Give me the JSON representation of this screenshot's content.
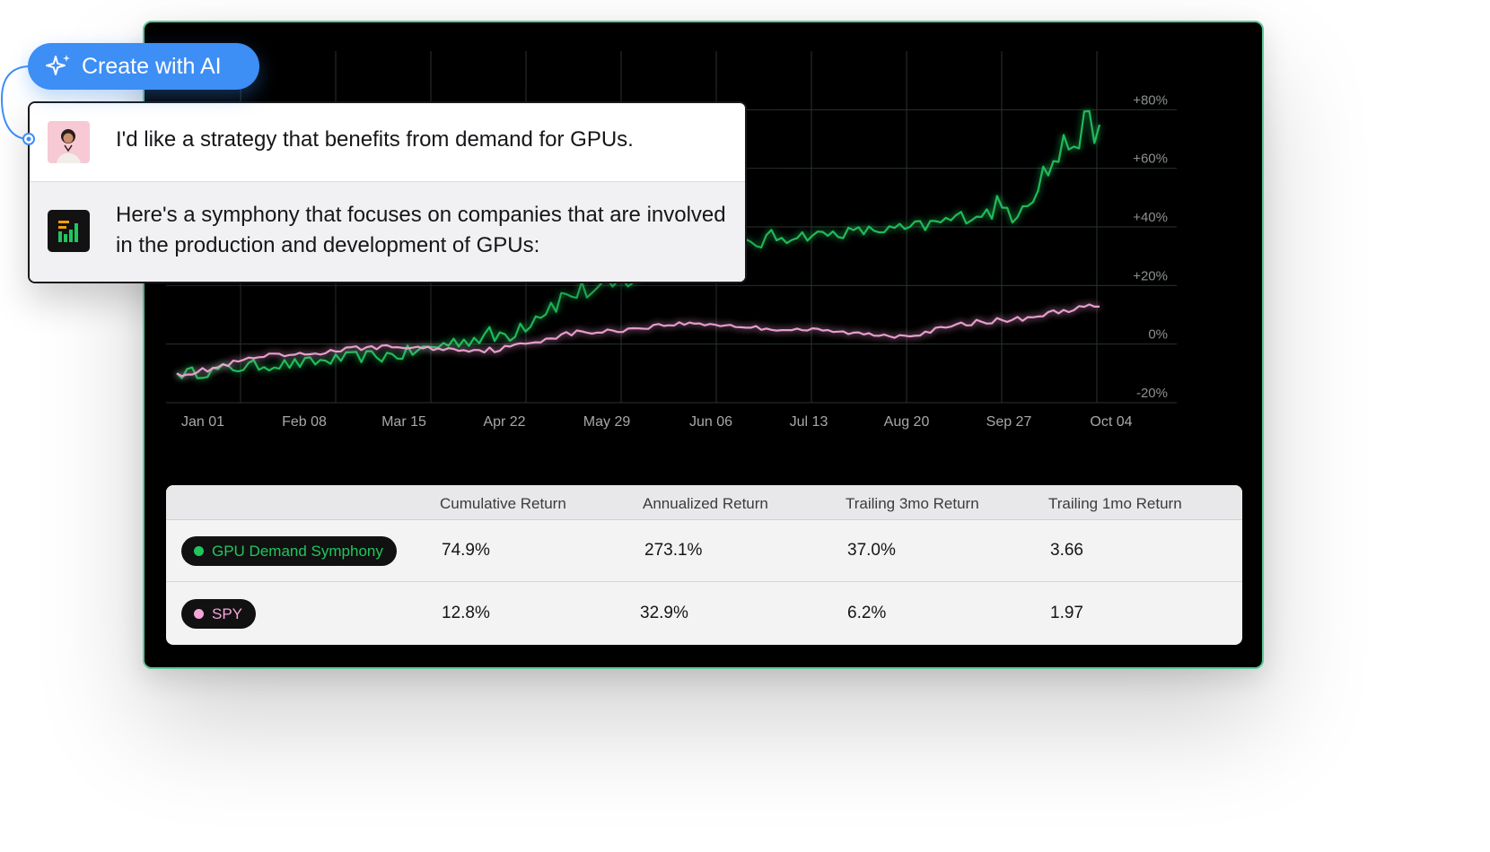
{
  "ai_button": {
    "label": "Create with AI",
    "icon": "sparkle-icon",
    "color": "#3d8ef5"
  },
  "chat": {
    "user_message": "I'd like a strategy that benefits from demand for GPUs.",
    "bot_message": "Here's a symphony that focuses on companies that are involved in the production and development of GPUs:"
  },
  "chart_data": {
    "type": "line",
    "x": [
      "Jan 01",
      "Feb 08",
      "Mar 15",
      "Apr 22",
      "May 29",
      "Jun 06",
      "Jul 13",
      "Aug 20",
      "Sep 27",
      "Oct 04"
    ],
    "x_ticks": [
      "Jan 01",
      "Feb 08",
      "Mar 15",
      "Apr 22",
      "May 29",
      "Jun 06",
      "Jul 13",
      "Aug 20",
      "Sep 27",
      "Oct 04"
    ],
    "y_ticks": [
      "+80%",
      "+60%",
      "+40%",
      "+20%",
      "0%",
      "-20%"
    ],
    "ylim": [
      -20,
      100
    ],
    "grid": true,
    "series": [
      {
        "name": "GPU Demand Symphony",
        "color": "#22c55e",
        "values": [
          -10,
          -7,
          -4,
          2,
          18,
          28,
          37,
          39,
          45,
          74.9
        ]
      },
      {
        "name": "SPY",
        "color": "#f4a6d7",
        "values": [
          -10,
          -4,
          -1,
          -2,
          4,
          7,
          5,
          3,
          8,
          12.8
        ]
      }
    ]
  },
  "table": {
    "columns": [
      "Cumulative Return",
      "Annualized Return",
      "Trailing 3mo Return",
      "Trailing 1mo Return"
    ],
    "rows": [
      {
        "name": "GPU Demand Symphony",
        "dot_color": "#22c55e",
        "text_color": "#22c55e",
        "values": [
          "74.9%",
          "273.1%",
          "37.0%",
          "3.66"
        ]
      },
      {
        "name": "SPY",
        "dot_color": "#f4a6d7",
        "text_color": "#f4a6d7",
        "values": [
          "12.8%",
          "32.9%",
          "6.2%",
          "1.97"
        ]
      }
    ]
  }
}
